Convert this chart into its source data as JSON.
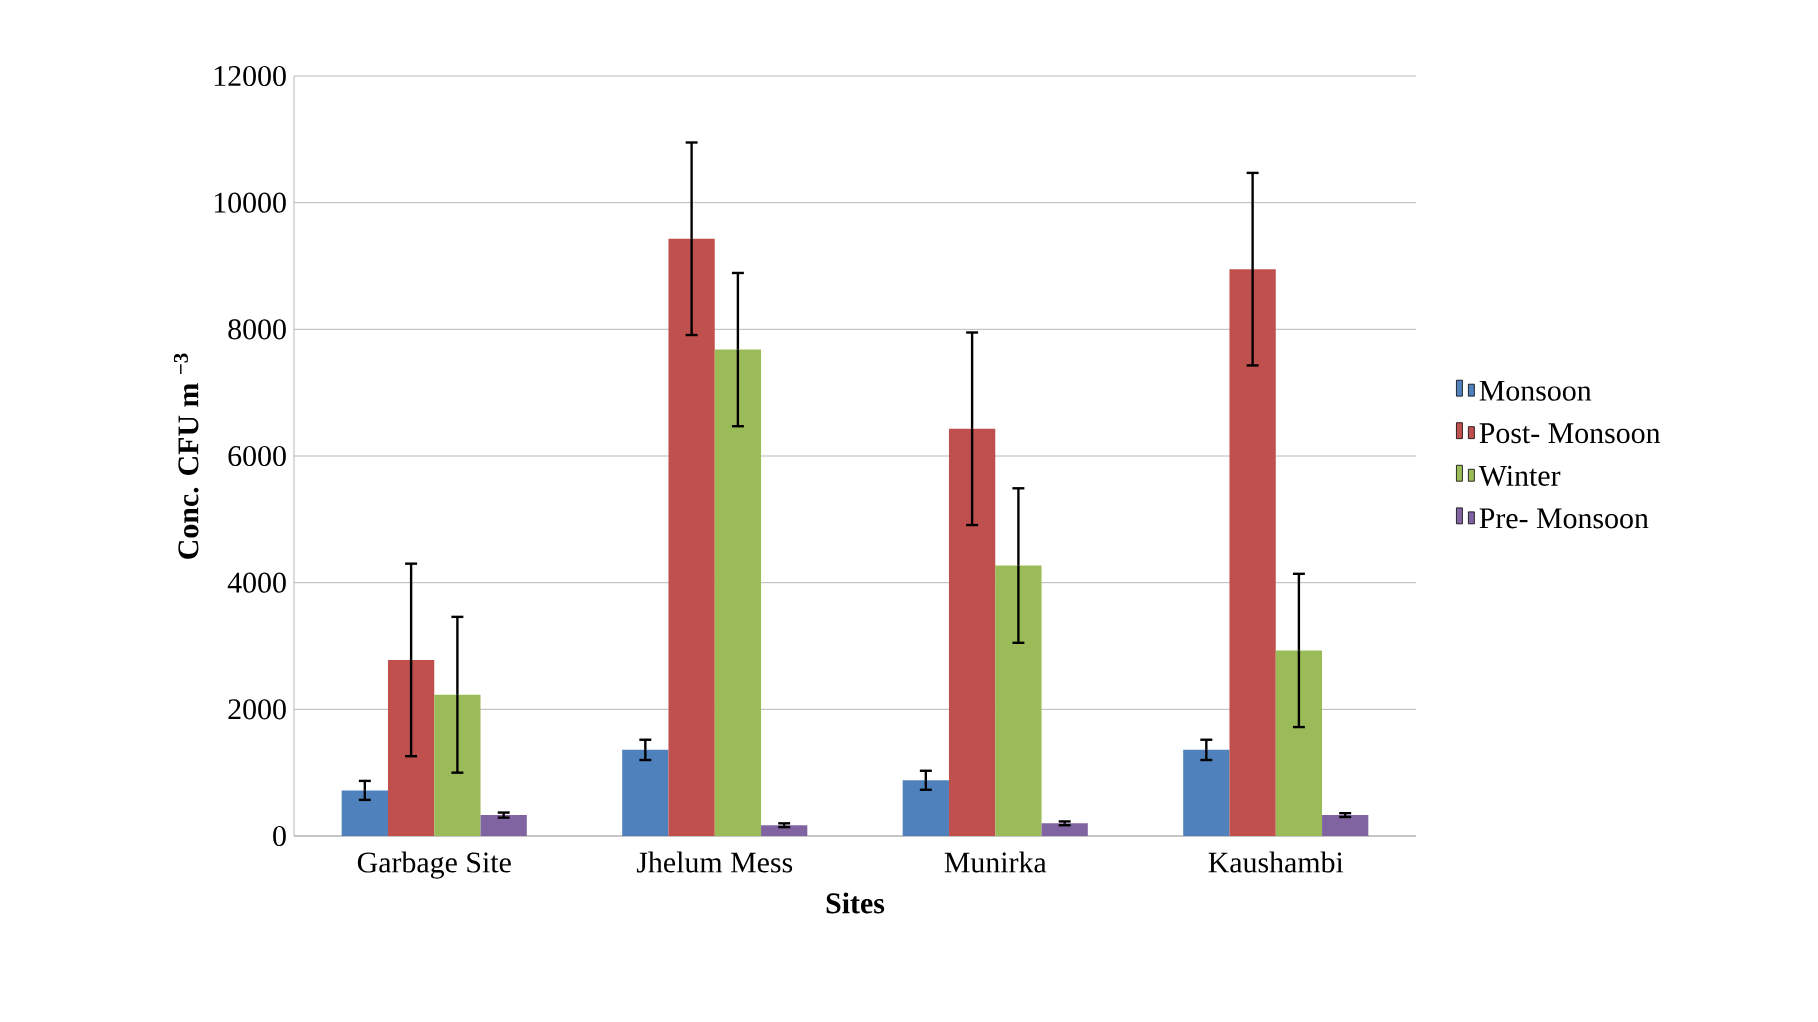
{
  "chart_data": {
    "type": "bar",
    "xlabel": "Sites",
    "ylabel": "Conc. CFU m $^{−3}$",
    "categories": [
      "Garbage Site",
      "Jhelum Mess",
      "Munirka",
      "Kaushambi"
    ],
    "series": [
      {
        "name": "Monsoon",
        "color": "#4f81bd",
        "values": [
          720,
          1360,
          880,
          1360
        ],
        "errors": [
          150,
          160,
          150,
          160
        ]
      },
      {
        "name": "Post- Monsoon",
        "color": "#c0504d",
        "values": [
          2780,
          9430,
          6430,
          8950
        ],
        "errors": [
          1520,
          1520,
          1520,
          1520
        ]
      },
      {
        "name": "Winter",
        "color": "#9bbb59",
        "values": [
          2230,
          7680,
          4270,
          2930
        ],
        "errors": [
          1230,
          1210,
          1220,
          1210
        ]
      },
      {
        "name": "Pre- Monsoon",
        "color": "#8064a2",
        "values": [
          330,
          170,
          200,
          330
        ],
        "errors": [
          40,
          30,
          30,
          30
        ]
      }
    ],
    "ylim": [
      0,
      12000
    ],
    "yticks": [
      0,
      2000,
      4000,
      6000,
      8000,
      10000,
      12000
    ],
    "grid": "y",
    "legend": "right"
  }
}
